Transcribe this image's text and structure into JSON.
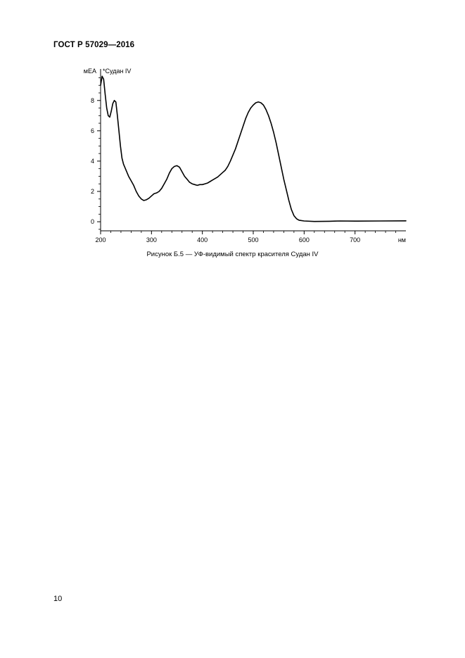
{
  "header": {
    "standard_id": "ГОСТ Р 57029—2016"
  },
  "figure": {
    "caption": "Рисунок Б.5 — УФ-видимый спектр красителя Судан IV"
  },
  "page": {
    "number": "10"
  },
  "chart_data": {
    "type": "line",
    "title": "",
    "xlabel": "нм",
    "ylabel": "мЕА",
    "xlim": [
      200,
      800
    ],
    "ylim": [
      -0.6,
      9.8
    ],
    "x_ticks": [
      200,
      300,
      400,
      500,
      600,
      700
    ],
    "y_ticks": [
      0,
      2,
      4,
      6,
      8
    ],
    "grid": false,
    "series": [
      {
        "name": "*Судан IV",
        "points": [
          [
            200,
            9.0
          ],
          [
            203,
            9.6
          ],
          [
            206,
            9.4
          ],
          [
            209,
            8.4
          ],
          [
            212,
            7.5
          ],
          [
            215,
            7.0
          ],
          [
            218,
            6.9
          ],
          [
            221,
            7.3
          ],
          [
            224,
            7.8
          ],
          [
            227,
            8.0
          ],
          [
            230,
            7.9
          ],
          [
            233,
            7.0
          ],
          [
            236,
            6.0
          ],
          [
            239,
            5.0
          ],
          [
            242,
            4.2
          ],
          [
            245,
            3.8
          ],
          [
            250,
            3.4
          ],
          [
            255,
            3.0
          ],
          [
            260,
            2.7
          ],
          [
            265,
            2.4
          ],
          [
            270,
            2.0
          ],
          [
            275,
            1.7
          ],
          [
            280,
            1.5
          ],
          [
            285,
            1.4
          ],
          [
            290,
            1.45
          ],
          [
            295,
            1.55
          ],
          [
            300,
            1.7
          ],
          [
            305,
            1.85
          ],
          [
            310,
            1.9
          ],
          [
            315,
            2.0
          ],
          [
            320,
            2.2
          ],
          [
            325,
            2.5
          ],
          [
            330,
            2.8
          ],
          [
            335,
            3.2
          ],
          [
            340,
            3.5
          ],
          [
            345,
            3.65
          ],
          [
            350,
            3.7
          ],
          [
            355,
            3.6
          ],
          [
            360,
            3.3
          ],
          [
            365,
            3.0
          ],
          [
            370,
            2.8
          ],
          [
            375,
            2.6
          ],
          [
            380,
            2.5
          ],
          [
            385,
            2.45
          ],
          [
            390,
            2.4
          ],
          [
            395,
            2.45
          ],
          [
            400,
            2.45
          ],
          [
            405,
            2.5
          ],
          [
            410,
            2.55
          ],
          [
            415,
            2.65
          ],
          [
            420,
            2.75
          ],
          [
            425,
            2.85
          ],
          [
            430,
            2.95
          ],
          [
            435,
            3.1
          ],
          [
            440,
            3.25
          ],
          [
            445,
            3.4
          ],
          [
            450,
            3.65
          ],
          [
            455,
            4.0
          ],
          [
            460,
            4.4
          ],
          [
            465,
            4.8
          ],
          [
            470,
            5.3
          ],
          [
            475,
            5.8
          ],
          [
            480,
            6.3
          ],
          [
            485,
            6.8
          ],
          [
            490,
            7.2
          ],
          [
            495,
            7.5
          ],
          [
            500,
            7.7
          ],
          [
            505,
            7.85
          ],
          [
            510,
            7.9
          ],
          [
            515,
            7.85
          ],
          [
            520,
            7.7
          ],
          [
            525,
            7.4
          ],
          [
            530,
            7.0
          ],
          [
            535,
            6.5
          ],
          [
            540,
            5.9
          ],
          [
            545,
            5.2
          ],
          [
            550,
            4.4
          ],
          [
            555,
            3.6
          ],
          [
            560,
            2.8
          ],
          [
            565,
            2.1
          ],
          [
            570,
            1.4
          ],
          [
            575,
            0.8
          ],
          [
            580,
            0.4
          ],
          [
            585,
            0.2
          ],
          [
            590,
            0.1
          ],
          [
            600,
            0.05
          ],
          [
            620,
            0.02
          ],
          [
            650,
            0.03
          ],
          [
            660,
            0.04
          ],
          [
            670,
            0.05
          ],
          [
            700,
            0.04
          ],
          [
            750,
            0.05
          ],
          [
            800,
            0.06
          ]
        ]
      }
    ]
  }
}
